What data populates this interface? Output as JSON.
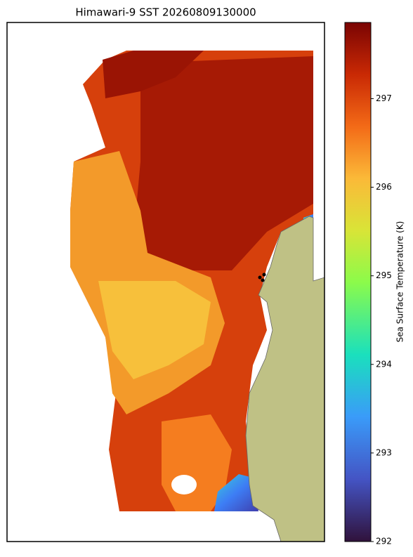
{
  "chart_data": {
    "type": "heatmap",
    "title": "Himawari-9 SST 20260809130000",
    "colorbar_label": "Sea Surface Temperature (K)",
    "zlim": [
      292,
      297.86
    ],
    "zticks": [
      292,
      293,
      294,
      295,
      296,
      297
    ]
  }
}
